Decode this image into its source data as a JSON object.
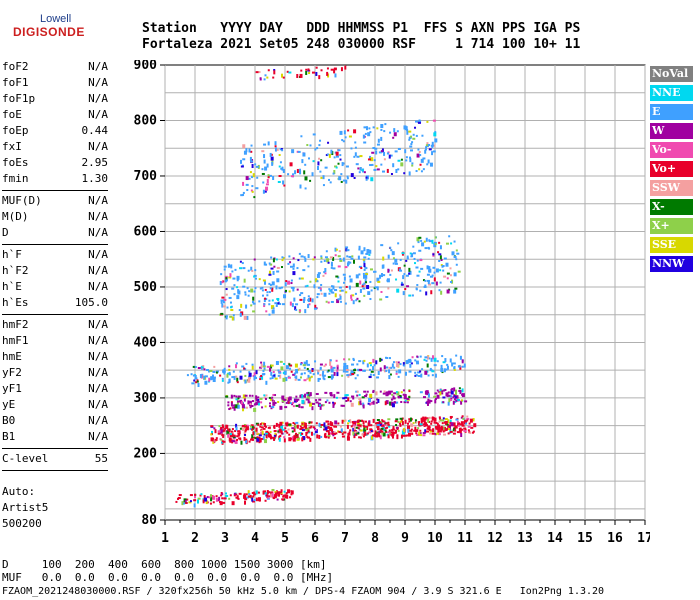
{
  "logo": {
    "top": "Lowell",
    "main": "DIGISONDE"
  },
  "header": {
    "line1": "Station   YYYY DAY   DDD HHMMSS P1  FFS S AXN PPS IGA PS",
    "line2": "Fortaleza 2021 Set05 248 030000 RSF     1 714 100 10+ 11"
  },
  "params_groups": [
    [
      {
        "k": "foF2",
        "v": "N/A"
      },
      {
        "k": "foF1",
        "v": "N/A"
      },
      {
        "k": "foF1p",
        "v": "N/A"
      },
      {
        "k": "foE",
        "v": "N/A"
      },
      {
        "k": "foEp",
        "v": "0.44"
      },
      {
        "k": "fxI",
        "v": "N/A"
      },
      {
        "k": "foEs",
        "v": "2.95"
      },
      {
        "k": "fmin",
        "v": "1.30"
      }
    ],
    [
      {
        "k": "MUF(D)",
        "v": "N/A"
      },
      {
        "k": "M(D)",
        "v": "N/A"
      },
      {
        "k": "D",
        "v": "N/A"
      }
    ],
    [
      {
        "k": "h`F",
        "v": "N/A"
      },
      {
        "k": "h`F2",
        "v": "N/A"
      },
      {
        "k": "h`E",
        "v": "N/A"
      },
      {
        "k": "h`Es",
        "v": "105.0"
      }
    ],
    [
      {
        "k": "hmF2",
        "v": "N/A"
      },
      {
        "k": "hmF1",
        "v": "N/A"
      },
      {
        "k": "hmE",
        "v": "N/A"
      },
      {
        "k": "yF2",
        "v": "N/A"
      },
      {
        "k": "yF1",
        "v": "N/A"
      },
      {
        "k": "yE",
        "v": "N/A"
      },
      {
        "k": "B0",
        "v": "N/A"
      },
      {
        "k": "B1",
        "v": "N/A"
      }
    ],
    [
      {
        "k": "C-level",
        "v": "55"
      }
    ]
  ],
  "auto": {
    "line1": "Auto:",
    "line2": "Artist5",
    "line3": "500200"
  },
  "legend": [
    {
      "label": "NoVal",
      "color": "#808080"
    },
    {
      "label": "NNE",
      "color": "#00d8f0"
    },
    {
      "label": "E",
      "color": "#3fa0ff"
    },
    {
      "label": "W",
      "color": "#a000a0"
    },
    {
      "label": "Vo-",
      "color": "#f04ab0"
    },
    {
      "label": "Vo+",
      "color": "#e8002a"
    },
    {
      "label": "SSW",
      "color": "#f4a0a0"
    },
    {
      "label": "X-",
      "color": "#007a00"
    },
    {
      "label": "X+",
      "color": "#8ed04a"
    },
    {
      "label": "SSE",
      "color": "#d8d800"
    },
    {
      "label": "NNW",
      "color": "#2000e0"
    }
  ],
  "bottom": {
    "line1": "D     100  200  400  600  800 1000 1500 3000 [km]",
    "line2": "MUF   0.0  0.0  0.0  0.0  0.0  0.0  0.0  0.0 [MHz]",
    "line3": "FZAOM_2021248030000.RSF / 320fx256h 50 kHz 5.0 km / DPS-4 FZAOM 904 / 3.9 S 321.6 E   Ion2Png 1.3.20"
  },
  "chart_data": {
    "type": "scatter",
    "title": "",
    "xlabel": "",
    "ylabel": "",
    "xlim": [
      1,
      17
    ],
    "ylim": [
      80,
      900
    ],
    "x_ticks": [
      1,
      2,
      3,
      4,
      5,
      6,
      7,
      8,
      9,
      10,
      11,
      12,
      13,
      14,
      15,
      16,
      17
    ],
    "y_ticks": [
      80,
      200,
      300,
      400,
      500,
      600,
      700,
      800,
      900
    ],
    "grid": true,
    "traces": [
      {
        "name": "Es ~ 120 km",
        "x_range": [
          1.3,
          5.2
        ],
        "y_range": [
          108,
          138
        ],
        "dominant": "Vo+"
      },
      {
        "name": "echo ~ 240 km",
        "x_range": [
          2.5,
          11.3
        ],
        "y_range": [
          220,
          270
        ],
        "dominant": "Vo+"
      },
      {
        "name": "echo ~ 300 km",
        "x_range": [
          3.0,
          11.0
        ],
        "y_range": [
          280,
          320
        ],
        "dominant": "W"
      },
      {
        "name": "echo ~ 340 km",
        "x_range": [
          1.7,
          11.0
        ],
        "y_range": [
          325,
          380
        ],
        "dominant": "E"
      },
      {
        "name": "echo ~ 460 km",
        "x_range": [
          2.8,
          10.8
        ],
        "y_range": [
          440,
          600
        ],
        "dominant": "E"
      },
      {
        "name": "echo ~ 690 km",
        "x_range": [
          3.5,
          10.0
        ],
        "y_range": [
          660,
          810
        ],
        "dominant": "E"
      },
      {
        "name": "echo ~ 890 km",
        "x_range": [
          4.0,
          7.0
        ],
        "y_range": [
          875,
          900
        ],
        "dominant": "Vo+"
      }
    ]
  }
}
